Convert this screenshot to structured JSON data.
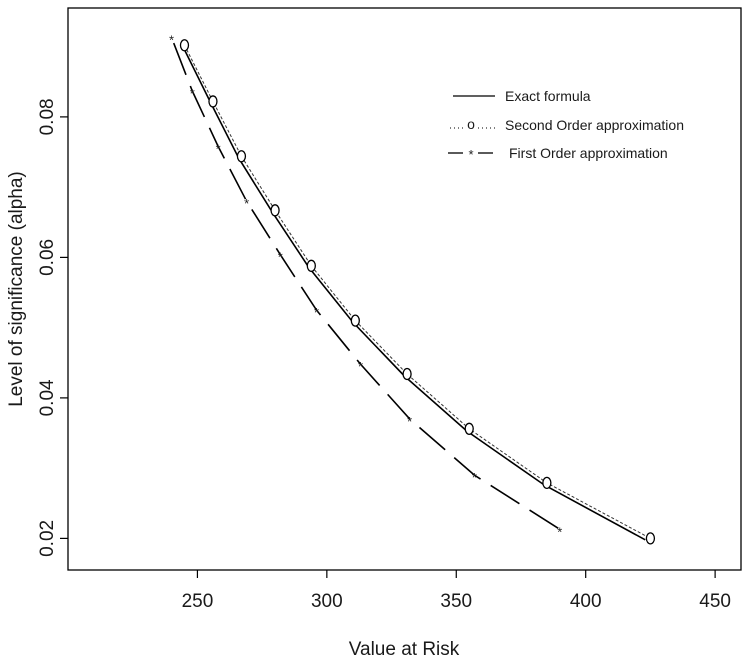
{
  "chart_data": {
    "type": "line",
    "xlabel": "Value at Risk",
    "ylabel": "Level of significance (alpha)",
    "xlim": [
      200,
      460
    ],
    "ylim": [
      0.0155,
      0.0955
    ],
    "x_ticks": [
      250,
      300,
      350,
      400,
      450
    ],
    "y_ticks": [
      0.02,
      0.04,
      0.06,
      0.08
    ],
    "x_tick_labels": [
      "250",
      "300",
      "350",
      "400",
      "450"
    ],
    "y_tick_labels": [
      "0.02",
      "0.04",
      "0.06",
      "0.08"
    ],
    "grid": false,
    "legend_position": "top-right",
    "series": [
      {
        "name": "Exact formula",
        "style": "solid",
        "marker": "",
        "color": "#000000",
        "x": [
          244,
          255,
          266,
          279,
          293,
          310,
          330,
          354,
          384,
          423
        ],
        "y": [
          0.0903,
          0.0821,
          0.0741,
          0.0664,
          0.0586,
          0.0508,
          0.0431,
          0.0353,
          0.0276,
          0.0198
        ]
      },
      {
        "name": "Second Order approximation",
        "style": "dotted",
        "marker": "o",
        "color": "#333333",
        "x": [
          245,
          256,
          267,
          280,
          294,
          311,
          331,
          355,
          385,
          425
        ],
        "y": [
          0.0902,
          0.0822,
          0.0744,
          0.0667,
          0.0588,
          0.051,
          0.0434,
          0.0356,
          0.0279,
          0.02
        ]
      },
      {
        "name": "First Order approximation",
        "style": "longdash",
        "marker": "*",
        "color": "#000000",
        "x": [
          240,
          248,
          258,
          269,
          282,
          296,
          313,
          332,
          357,
          390
        ],
        "y": [
          0.0913,
          0.0837,
          0.0758,
          0.068,
          0.0604,
          0.0525,
          0.0448,
          0.037,
          0.029,
          0.0213
        ]
      }
    ]
  }
}
